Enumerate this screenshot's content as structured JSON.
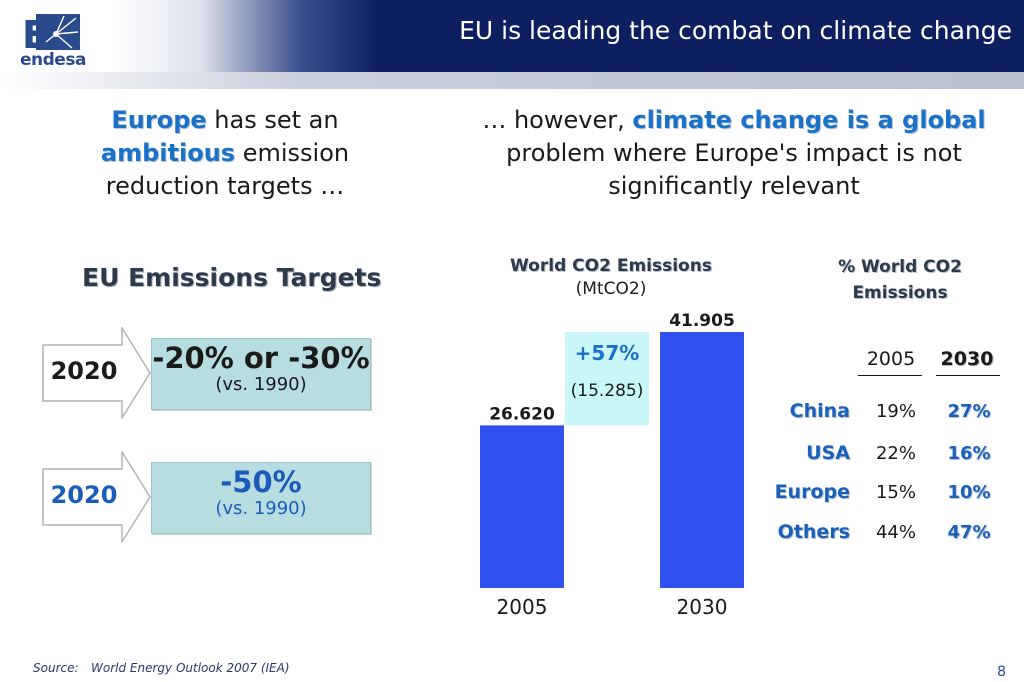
{
  "header": {
    "title": "EU is leading the combat on climate change",
    "logo_text": "endesa",
    "logo_letter": "E"
  },
  "headline_left": {
    "w1": "Europe",
    "t1": " has set an",
    "w2": "ambitious",
    "t2": " emission",
    "t3": "reduction targets …"
  },
  "headline_right": {
    "t1": "… however, ",
    "w1": "climate change is a global",
    "t2": "problem where Europe's impact is not",
    "t3": "significantly relevant"
  },
  "targets": {
    "title": "EU Emissions Targets",
    "items": [
      {
        "year": "2020",
        "main": "-20% or -30%",
        "sub": "(vs. 1990)",
        "year_color": "#1a1a1a",
        "text_color": "#1a1a1a"
      },
      {
        "year": "2020",
        "main": "-50%",
        "sub": "(vs. 1990)",
        "year_color": "#1a5cb8",
        "text_color": "#1a5cb8"
      }
    ]
  },
  "chart_data": {
    "type": "bar",
    "title": "World CO2 Emissions",
    "unit": "(MtCO2)",
    "categories": [
      "2005",
      "2030"
    ],
    "values": [
      26620,
      41905
    ],
    "value_labels": [
      "26.620",
      "41.905"
    ],
    "increase": {
      "percent_label": "+57%",
      "value_label": "(15.285)",
      "value": 15285
    },
    "ylim": [
      0,
      41905
    ],
    "bar_color": "#2f52ef",
    "increase_box_color": "#c9f7f9",
    "grid": false,
    "legend": "none"
  },
  "share_table": {
    "title": "% World CO2 Emissions",
    "columns": [
      "2005",
      "2030"
    ],
    "rows": [
      {
        "region": "China",
        "v2005": "19%",
        "v2030": "27%"
      },
      {
        "region": "USA",
        "v2005": "22%",
        "v2030": "16%"
      },
      {
        "region": "Europe",
        "v2005": "15%",
        "v2030": "10%"
      },
      {
        "region": "Others",
        "v2005": "44%",
        "v2030": "47%"
      }
    ]
  },
  "footer": {
    "source_label": "Source:",
    "source_text": "World Energy Outlook 2007 (IEA)",
    "page_number": "8"
  }
}
